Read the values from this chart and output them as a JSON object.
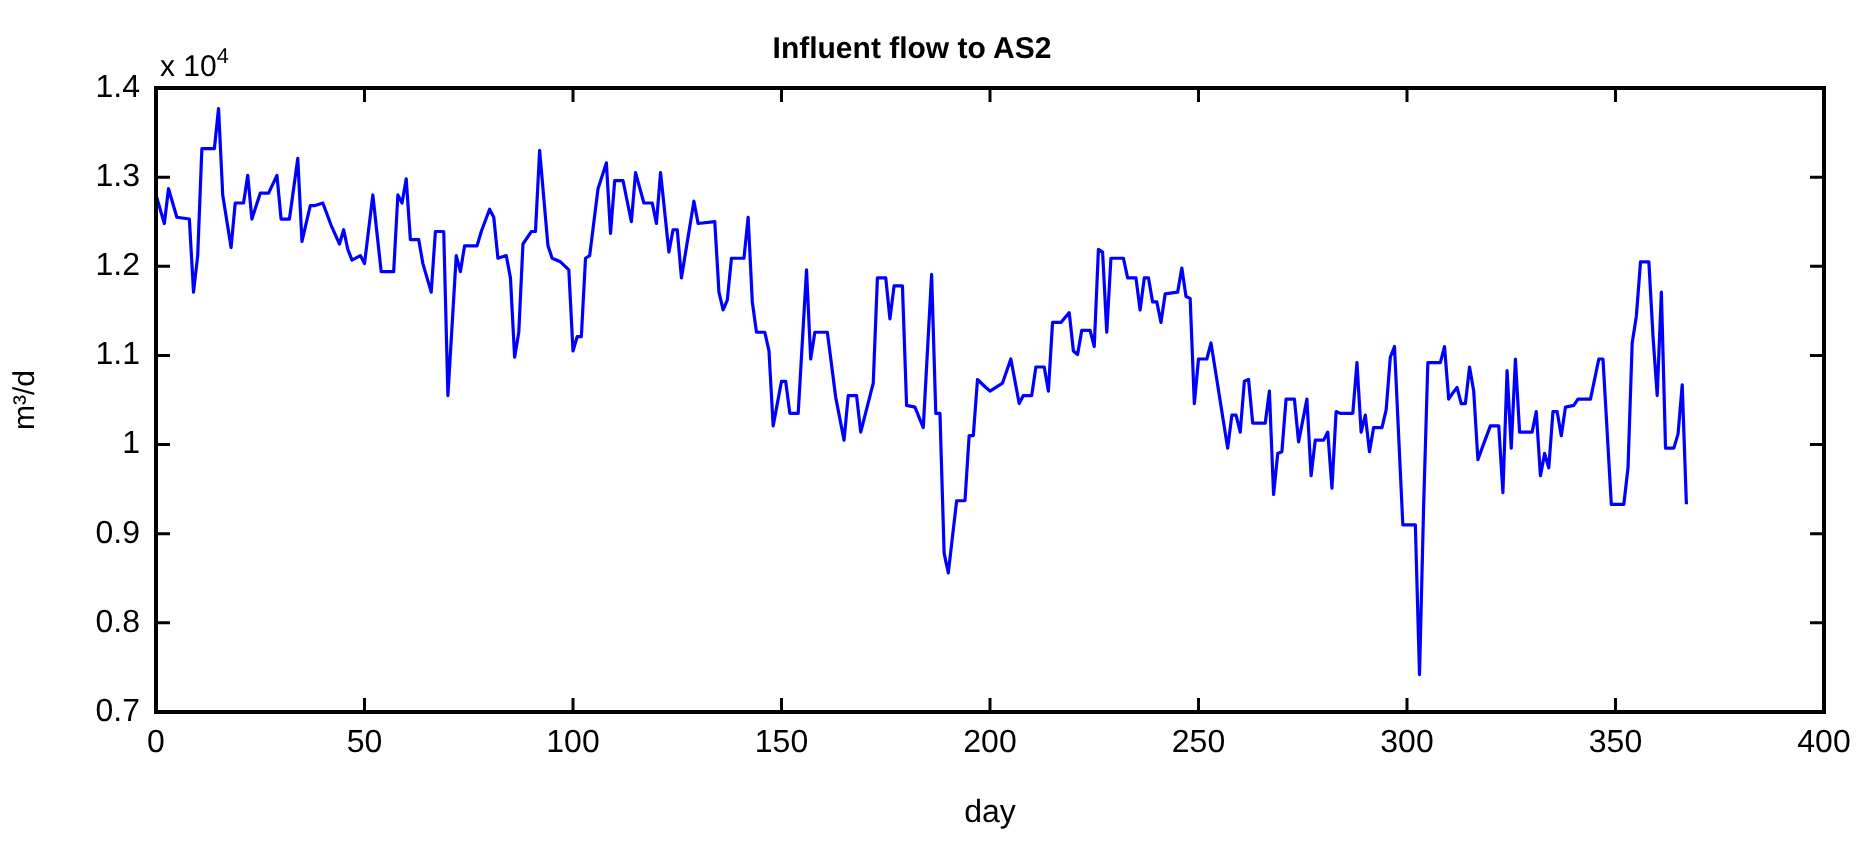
{
  "chart_data": {
    "type": "line",
    "title": "Influent flow to AS2",
    "xlabel": "day",
    "ylabel": "m³/d",
    "annotations": [
      "x 10$^{4}$"
    ],
    "x": [
      0,
      2,
      3,
      5,
      8,
      9,
      10,
      11,
      14,
      15,
      16,
      18,
      19,
      21,
      22,
      23,
      25,
      27,
      29,
      30,
      32,
      34,
      35,
      37,
      38,
      40,
      42,
      44,
      45,
      46,
      47,
      49,
      50,
      52,
      54,
      57,
      58,
      59,
      60,
      61,
      63,
      64,
      66,
      67,
      69,
      70,
      72,
      73,
      74,
      77,
      78,
      80,
      81,
      82,
      84,
      85,
      86,
      87,
      88,
      90,
      91,
      92,
      94,
      95,
      97,
      99,
      100,
      101,
      102,
      103,
      104,
      106,
      108,
      109,
      110,
      112,
      114,
      115,
      117,
      119,
      120,
      121,
      123,
      124,
      125,
      126,
      129,
      130,
      134,
      135,
      136,
      137,
      138,
      141,
      142,
      143,
      144,
      146,
      147,
      148,
      150,
      151,
      152,
      154,
      156,
      157,
      158,
      161,
      163,
      165,
      166,
      168,
      169,
      172,
      173,
      175,
      176,
      177,
      179,
      180,
      182,
      184,
      186,
      187,
      188,
      189,
      190,
      192,
      194,
      195,
      196,
      197,
      199,
      200,
      203,
      205,
      207,
      208,
      210,
      211,
      213,
      214,
      215,
      217,
      219,
      220,
      221,
      222,
      224,
      225,
      226,
      227,
      228,
      229,
      232,
      233,
      235,
      236,
      237,
      238,
      239,
      240,
      241,
      242,
      245,
      246,
      247,
      248,
      249,
      250,
      252,
      253,
      257,
      258,
      259,
      260,
      261,
      262,
      263,
      266,
      267,
      268,
      269,
      270,
      271,
      273,
      274,
      276,
      277,
      278,
      280,
      281,
      282,
      283,
      284,
      287,
      288,
      289,
      290,
      291,
      292,
      294,
      295,
      296,
      297,
      299,
      302,
      303,
      304,
      305,
      308,
      309,
      310,
      311,
      312,
      313,
      314,
      315,
      316,
      317,
      318,
      320,
      322,
      323,
      324,
      325,
      326,
      327,
      330,
      331,
      332,
      333,
      334,
      335,
      336,
      337,
      338,
      340,
      341,
      344,
      346,
      347,
      349,
      352,
      353,
      354,
      355,
      356,
      358,
      359,
      360,
      361,
      362,
      364,
      365,
      366,
      367
    ],
    "series": [
      {
        "color": "#0000ff",
        "values": [
          1.28,
          1.248,
          1.287,
          1.255,
          1.253,
          1.171,
          1.212,
          1.332,
          1.332,
          1.377,
          1.28,
          1.221,
          1.271,
          1.271,
          1.302,
          1.253,
          1.282,
          1.282,
          1.302,
          1.253,
          1.253,
          1.321,
          1.228,
          1.268,
          1.268,
          1.271,
          1.246,
          1.225,
          1.241,
          1.219,
          1.207,
          1.212,
          1.203,
          1.28,
          1.194,
          1.194,
          1.28,
          1.271,
          1.298,
          1.23,
          1.23,
          1.203,
          1.171,
          1.239,
          1.239,
          1.055,
          1.212,
          1.194,
          1.223,
          1.223,
          1.239,
          1.264,
          1.255,
          1.209,
          1.212,
          1.187,
          1.098,
          1.126,
          1.225,
          1.239,
          1.239,
          1.33,
          1.223,
          1.209,
          1.205,
          1.196,
          1.105,
          1.121,
          1.121,
          1.209,
          1.212,
          1.287,
          1.316,
          1.237,
          1.296,
          1.296,
          1.25,
          1.305,
          1.271,
          1.271,
          1.248,
          1.305,
          1.216,
          1.241,
          1.241,
          1.187,
          1.273,
          1.248,
          1.25,
          1.171,
          1.151,
          1.162,
          1.209,
          1.209,
          1.255,
          1.16,
          1.126,
          1.126,
          1.105,
          1.021,
          1.071,
          1.071,
          1.035,
          1.035,
          1.196,
          1.096,
          1.126,
          1.126,
          1.053,
          1.005,
          1.055,
          1.055,
          1.014,
          1.069,
          1.187,
          1.187,
          1.141,
          1.178,
          1.178,
          1.044,
          1.042,
          1.019,
          1.191,
          1.035,
          1.035,
          0.878,
          0.856,
          0.937,
          0.937,
          1.01,
          1.01,
          1.073,
          1.064,
          1.06,
          1.069,
          1.096,
          1.046,
          1.055,
          1.055,
          1.087,
          1.087,
          1.06,
          1.137,
          1.137,
          1.148,
          1.105,
          1.101,
          1.128,
          1.128,
          1.11,
          1.219,
          1.216,
          1.126,
          1.209,
          1.209,
          1.187,
          1.187,
          1.151,
          1.187,
          1.187,
          1.16,
          1.16,
          1.137,
          1.169,
          1.171,
          1.198,
          1.166,
          1.164,
          1.046,
          1.096,
          1.096,
          1.114,
          0.996,
          1.033,
          1.033,
          1.014,
          1.071,
          1.073,
          1.024,
          1.024,
          1.06,
          0.944,
          0.99,
          0.992,
          1.051,
          1.051,
          1.003,
          1.051,
          0.965,
          1.005,
          1.005,
          1.014,
          0.951,
          1.037,
          1.035,
          1.035,
          1.092,
          1.014,
          1.033,
          0.992,
          1.019,
          1.019,
          1.039,
          1.098,
          1.11,
          0.91,
          0.91,
          0.742,
          0.933,
          1.092,
          1.092,
          1.11,
          1.051,
          1.058,
          1.064,
          1.046,
          1.046,
          1.087,
          1.06,
          0.983,
          0.996,
          1.021,
          1.021,
          0.946,
          1.083,
          0.996,
          1.096,
          1.014,
          1.014,
          1.037,
          0.965,
          0.99,
          0.974,
          1.037,
          1.037,
          1.01,
          1.042,
          1.044,
          1.051,
          1.051,
          1.096,
          1.096,
          0.933,
          0.933,
          0.974,
          1.114,
          1.144,
          1.205,
          1.205,
          1.121,
          1.055,
          1.171,
          0.996,
          0.996,
          1.012,
          1.067,
          0.933
        ]
      }
    ],
    "xlim": [
      0,
      400
    ],
    "xticks": [
      0,
      50,
      100,
      150,
      200,
      250,
      300,
      350,
      400
    ],
    "ylim": [
      0.7,
      1.4
    ],
    "yticks": [
      0.7,
      0.8,
      0.9,
      1,
      1.1,
      1.2,
      1.3,
      1.4
    ],
    "grid": false,
    "legend": false
  }
}
